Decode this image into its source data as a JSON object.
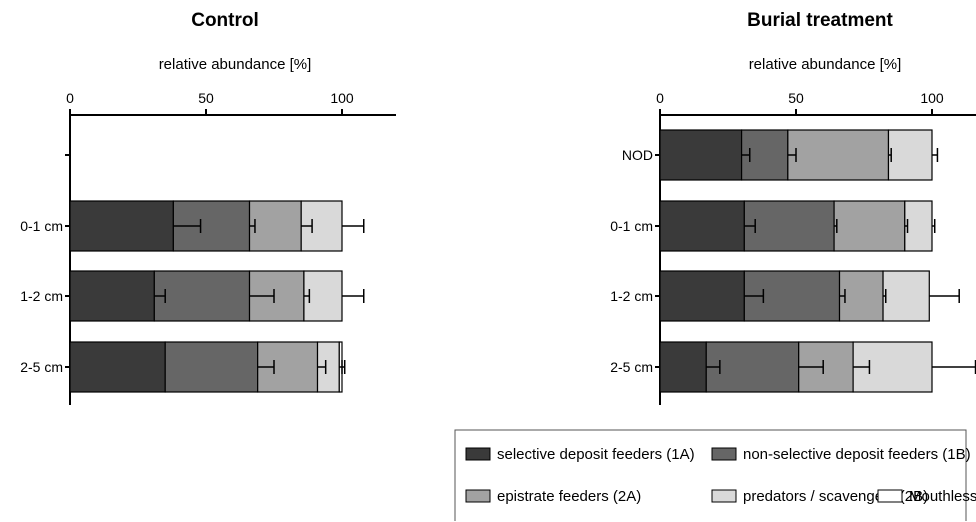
{
  "chart_data": [
    {
      "type": "bar",
      "orientation": "horizontal",
      "stacked": true,
      "title": "Control",
      "xlabel": "relative abundance [%]",
      "xlim": [
        0,
        120
      ],
      "xticks": [
        0,
        50,
        100
      ],
      "categories": [
        "",
        "0-1 cm",
        "1-2 cm",
        "2-5 cm"
      ],
      "series": [
        {
          "name": "selective deposit feeders (1A)",
          "values": [
            null,
            38,
            31,
            35
          ],
          "errors": [
            null,
            10,
            4,
            0
          ]
        },
        {
          "name": "non-selective deposit feeders (1B)",
          "values": [
            null,
            28,
            35,
            34
          ],
          "errors": [
            null,
            2,
            9,
            6
          ]
        },
        {
          "name": "epistrate feeders (2A)",
          "values": [
            null,
            19,
            20,
            22
          ],
          "errors": [
            null,
            4,
            2,
            3
          ]
        },
        {
          "name": "predators / scavengers (2B)",
          "values": [
            null,
            15,
            14,
            8
          ],
          "errors": [
            null,
            8,
            8,
            1
          ]
        },
        {
          "name": "Mouthless",
          "values": [
            null,
            0,
            0,
            1
          ],
          "errors": [
            null,
            0,
            0,
            1
          ]
        }
      ]
    },
    {
      "type": "bar",
      "orientation": "horizontal",
      "stacked": true,
      "title": "Burial treatment",
      "xlabel": "relative abundance [%]",
      "xlim": [
        0,
        110
      ],
      "xticks": [
        0,
        50,
        100
      ],
      "categories": [
        "NOD",
        "0-1 cm",
        "1-2 cm",
        "2-5 cm"
      ],
      "series": [
        {
          "name": "selective deposit feeders (1A)",
          "values": [
            30,
            31,
            31,
            17
          ],
          "errors": [
            3,
            4,
            7,
            5
          ]
        },
        {
          "name": "non-selective deposit feeders (1B)",
          "values": [
            17,
            33,
            35,
            34
          ],
          "errors": [
            3,
            1,
            2,
            9
          ]
        },
        {
          "name": "epistrate feeders (2A)",
          "values": [
            37,
            26,
            16,
            20
          ],
          "errors": [
            1,
            1,
            1,
            6
          ]
        },
        {
          "name": "predators / scavengers (2B)",
          "values": [
            16,
            10,
            17,
            29
          ],
          "errors": [
            2,
            1,
            11,
            16
          ]
        },
        {
          "name": "Mouthless",
          "values": [
            0,
            0,
            0,
            0
          ],
          "errors": [
            0,
            0,
            0,
            0
          ]
        }
      ]
    }
  ],
  "legend": {
    "items": [
      {
        "label": "selective deposit feeders (1A)",
        "color": "#3a3a3a"
      },
      {
        "label": "non-selective deposit feeders (1B)",
        "color": "#666666"
      },
      {
        "label": "epistrate feeders (2A)",
        "color": "#a2a2a2"
      },
      {
        "label": "predators / scavengers (2B)",
        "color": "#d9d9d9"
      },
      {
        "label": "Mouthless",
        "color": "#ffffff"
      }
    ]
  }
}
